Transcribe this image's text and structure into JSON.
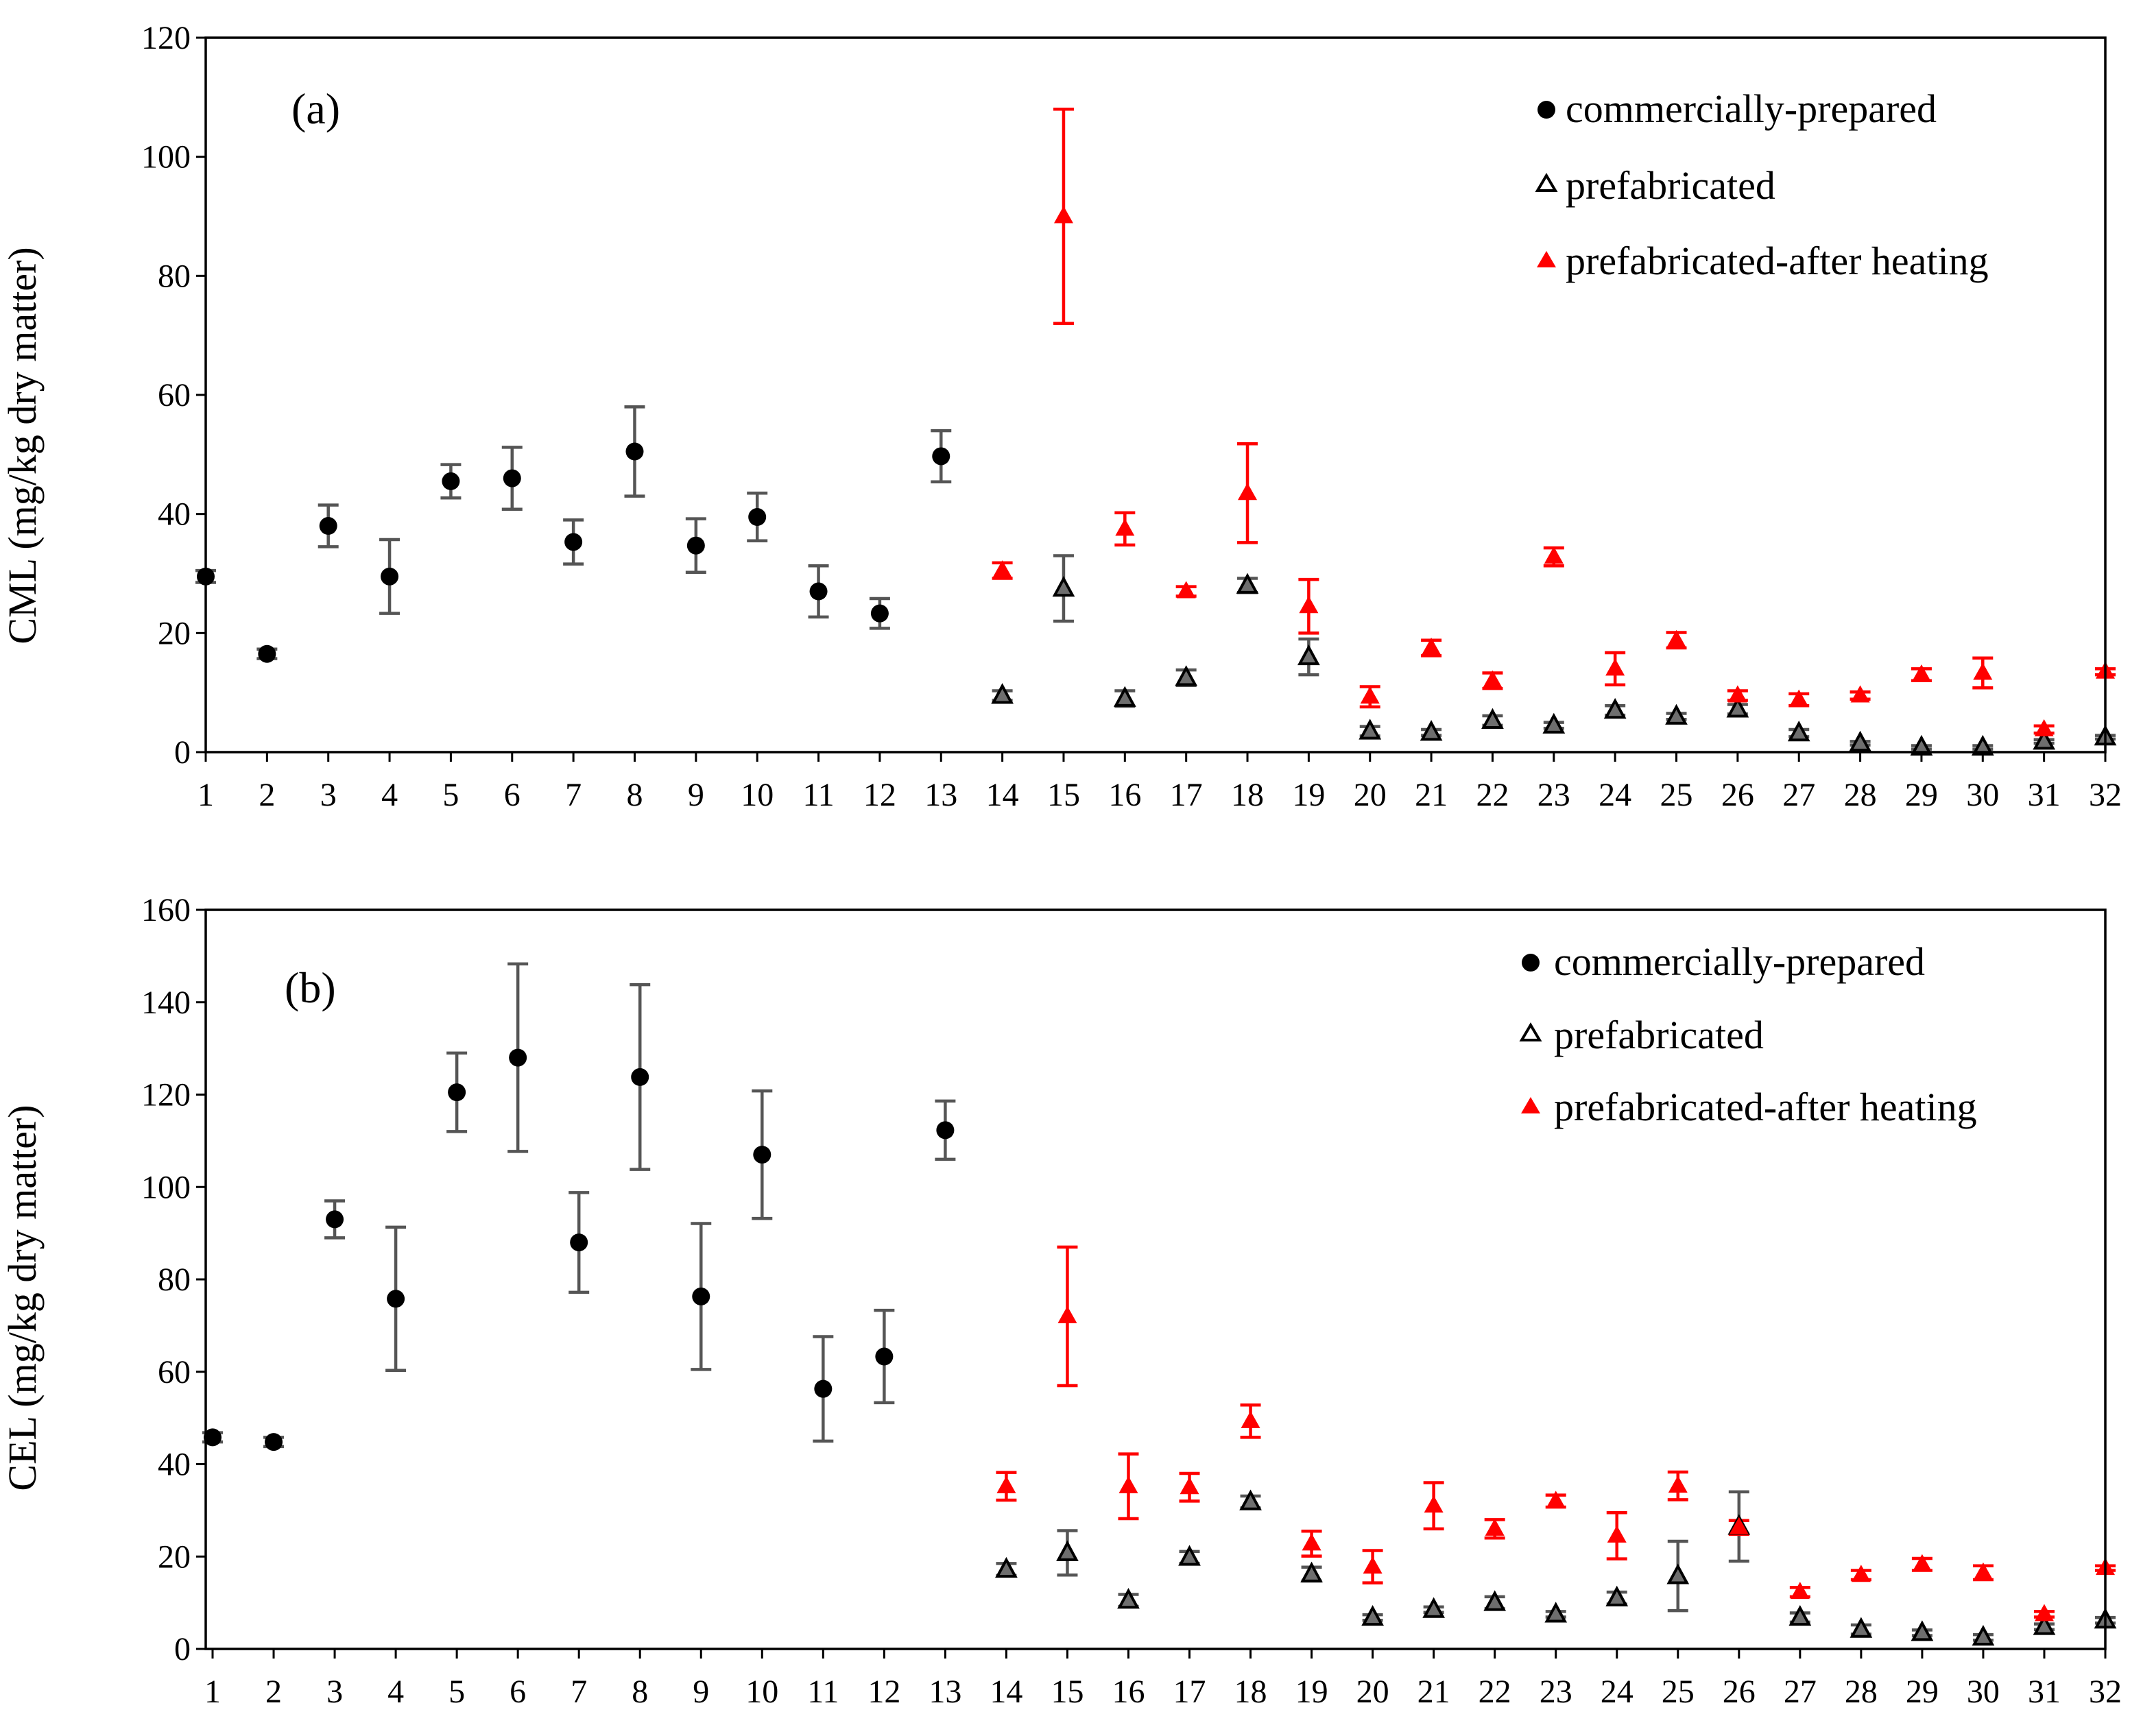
{
  "colors": {
    "commercial": "#000000",
    "prefabricated_fill": "#6e6e6e",
    "prefabricated_stroke": "#000000",
    "heated": "#ff0000",
    "errorbar_gray": "#555555"
  },
  "chart_data": [
    {
      "type": "scatter",
      "panel_label": "(a)",
      "ylabel": "CML (mg/kg dry matter)",
      "xlabel": "",
      "ylim": [
        0,
        120
      ],
      "yticks": [
        "0",
        "20",
        "40",
        "60",
        "80",
        "100",
        "120"
      ],
      "xticks": [
        "1",
        "2",
        "3",
        "4",
        "5",
        "6",
        "7",
        "8",
        "9",
        "10",
        "11",
        "12",
        "13",
        "14",
        "15",
        "16",
        "17",
        "18",
        "19",
        "20",
        "21",
        "22",
        "23",
        "24",
        "25",
        "26",
        "27",
        "28",
        "29",
        "30",
        "31",
        "32"
      ],
      "legend": [
        "commercially-prepared",
        "prefabricated",
        "prefabricated-after heating"
      ],
      "legend_position": "top-right",
      "series": [
        {
          "name": "commercially-prepared",
          "marker": "circle",
          "x": [
            1,
            2,
            3,
            4,
            5,
            6,
            7,
            8,
            9,
            10,
            11,
            12,
            13
          ],
          "values": [
            29.5,
            16.5,
            38,
            29.5,
            45.5,
            46,
            35.3,
            50.5,
            34.7,
            39.5,
            27,
            23.3,
            49.7
          ],
          "errors": [
            1,
            0.8,
            3.5,
            6.2,
            2.8,
            5.2,
            3.7,
            7.5,
            4.5,
            4,
            4.3,
            2.5,
            4.3
          ]
        },
        {
          "name": "prefabricated",
          "marker": "triangle-open",
          "x": [
            14,
            15,
            16,
            17,
            18,
            19,
            20,
            21,
            22,
            23,
            24,
            25,
            26,
            27,
            28,
            29,
            30,
            31,
            32
          ],
          "values": [
            9.5,
            27.5,
            9,
            12.5,
            28,
            16,
            3.5,
            3.3,
            5.3,
            4.5,
            7,
            6,
            7.2,
            3.2,
            1.5,
            0.8,
            0.8,
            1.8,
            2.5
          ],
          "errors": [
            0.8,
            5.5,
            1.3,
            1.3,
            1.2,
            3,
            0.8,
            0.5,
            0.8,
            0.5,
            0.8,
            0.5,
            0.8,
            0.6,
            0.3,
            0.3,
            0.3,
            0.3,
            0.3
          ]
        },
        {
          "name": "prefabricated-after heating",
          "marker": "triangle-filled",
          "x": [
            14,
            15,
            16,
            17,
            18,
            19,
            20,
            21,
            22,
            23,
            24,
            25,
            26,
            27,
            28,
            29,
            30,
            31,
            32
          ],
          "values": [
            30.5,
            90,
            37.5,
            27,
            43.5,
            24.5,
            9.3,
            17.5,
            12,
            32.8,
            14,
            18.8,
            9.5,
            8.8,
            9.5,
            13,
            13.3,
            3.8,
            13.5
          ],
          "errors": [
            1.3,
            18,
            2.7,
            0.8,
            8.3,
            4.5,
            1.7,
            1.3,
            1.3,
            1.5,
            2.7,
            1.3,
            0.8,
            1,
            0.6,
            1,
            2.5,
            0.6,
            0.5
          ]
        }
      ]
    },
    {
      "type": "scatter",
      "panel_label": "(b)",
      "ylabel": "CEL (mg/kg dry matter)",
      "xlabel": "",
      "ylim": [
        0,
        160
      ],
      "yticks": [
        "0",
        "20",
        "40",
        "60",
        "80",
        "100",
        "120",
        "140",
        "160"
      ],
      "xticks": [
        "1",
        "2",
        "3",
        "4",
        "5",
        "6",
        "7",
        "8",
        "9",
        "10",
        "11",
        "12",
        "13",
        "14",
        "15",
        "16",
        "17",
        "18",
        "19",
        "20",
        "21",
        "22",
        "23",
        "24",
        "25",
        "26",
        "27",
        "28",
        "29",
        "30",
        "31",
        "32"
      ],
      "legend": [
        "commercially-prepared",
        "prefabricated",
        "prefabricated-after heating"
      ],
      "legend_position": "top-right",
      "series": [
        {
          "name": "commercially-prepared",
          "marker": "circle",
          "x": [
            1,
            2,
            3,
            4,
            5,
            6,
            7,
            8,
            9,
            10,
            11,
            12,
            13
          ],
          "values": [
            45.8,
            44.8,
            93,
            75.8,
            120.5,
            128,
            88,
            123.8,
            76.3,
            107,
            56.3,
            63.3,
            112.3
          ],
          "errors": [
            1,
            1,
            4,
            15.5,
            8.5,
            20.3,
            10.8,
            20,
            15.8,
            13.8,
            11.3,
            10,
            6.3
          ]
        },
        {
          "name": "prefabricated",
          "marker": "triangle-open",
          "x": [
            14,
            15,
            16,
            17,
            18,
            19,
            20,
            21,
            22,
            23,
            24,
            25,
            26,
            27,
            28,
            29,
            30,
            31,
            32
          ],
          "values": [
            17.2,
            20.8,
            10.5,
            19.8,
            31.8,
            16.2,
            6.8,
            8.5,
            10,
            7.5,
            11,
            15.8,
            26.5,
            6.8,
            4.2,
            3.5,
            2.5,
            4.8,
            6.2
          ],
          "errors": [
            1.3,
            4.8,
            1.3,
            1.3,
            1.3,
            1.5,
            0.6,
            0.6,
            1.3,
            0.6,
            1.3,
            7.5,
            7.5,
            1,
            1,
            0.6,
            0.6,
            0.6,
            0.6
          ]
        },
        {
          "name": "prefabricated-after heating",
          "marker": "triangle-filled",
          "x": [
            14,
            15,
            16,
            17,
            18,
            19,
            20,
            21,
            22,
            23,
            24,
            25,
            26,
            27,
            28,
            29,
            30,
            31,
            32
          ],
          "values": [
            35.2,
            72,
            35.2,
            35,
            49.3,
            22.8,
            17.8,
            31,
            26,
            32,
            24.5,
            35.3,
            26.3,
            12.3,
            16,
            18.3,
            16.5,
            7.5,
            17.5
          ],
          "errors": [
            3,
            15,
            7,
            3,
            3.5,
            2.7,
            3.5,
            5,
            2,
            1.3,
            5,
            3,
            1.5,
            1,
            1,
            1.3,
            1.5,
            0.6,
            0.5
          ]
        }
      ]
    }
  ]
}
